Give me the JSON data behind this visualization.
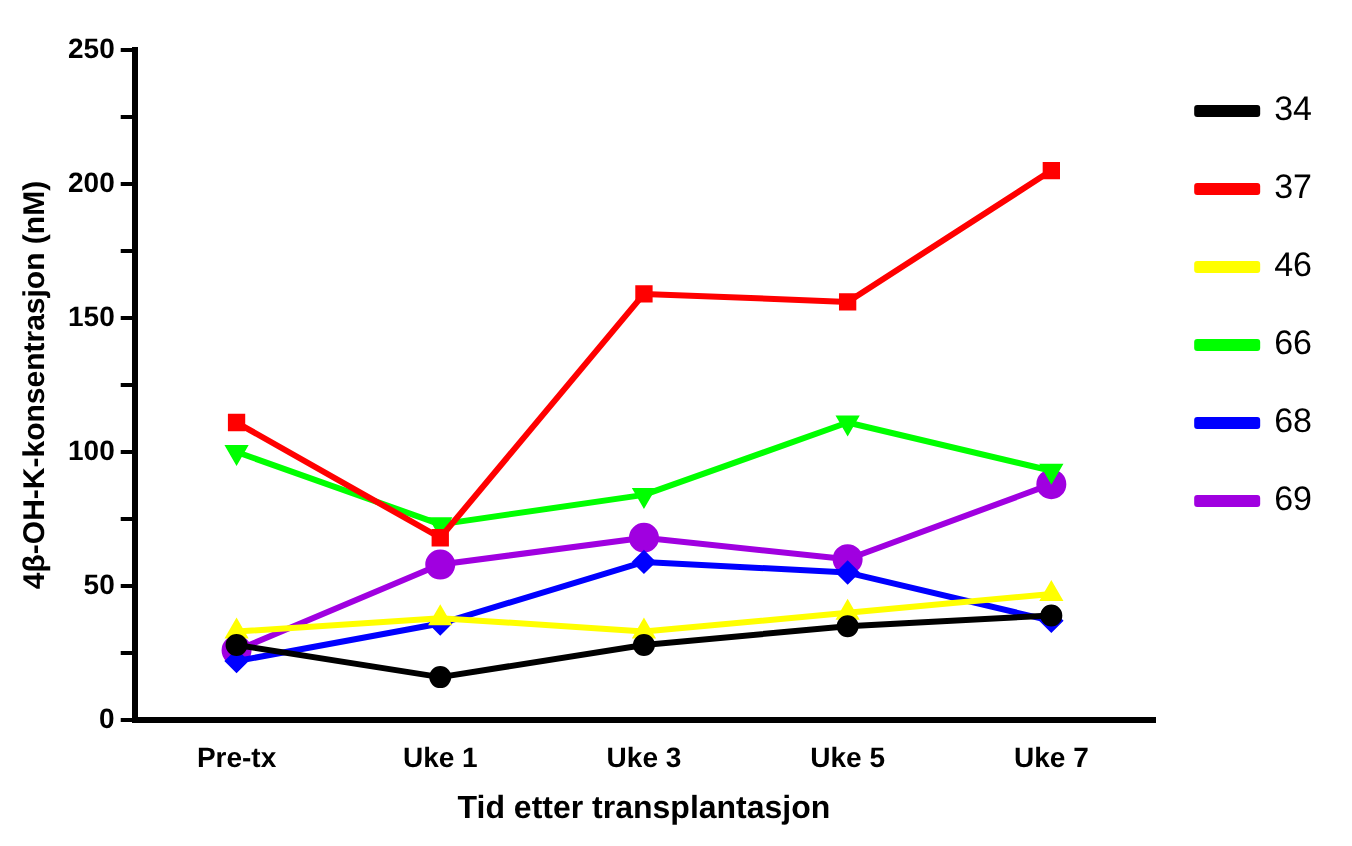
{
  "chart_data": {
    "type": "line",
    "xlabel": "Tid etter transplantasjon",
    "ylabel": "4β-OH-K-konsentrasjon (nM)",
    "categories": [
      "Pre-tx",
      "Uke 1",
      "Uke 3",
      "Uke 5",
      "Uke 7"
    ],
    "series": [
      {
        "name": "34",
        "color": "#000000",
        "marker": "circle",
        "values": [
          28,
          16,
          28,
          35,
          39
        ]
      },
      {
        "name": "37",
        "color": "#ff0000",
        "marker": "square",
        "values": [
          111,
          68,
          159,
          156,
          205
        ]
      },
      {
        "name": "46",
        "color": "#ffff00",
        "marker": "triangle",
        "values": [
          33,
          38,
          33,
          40,
          47
        ]
      },
      {
        "name": "66",
        "color": "#00ff00",
        "marker": "triangle",
        "values": [
          100,
          73,
          84,
          111,
          93
        ]
      },
      {
        "name": "68",
        "color": "#0000ff",
        "marker": "diamond",
        "values": [
          22,
          36,
          59,
          55,
          37
        ]
      },
      {
        "name": "69",
        "color": "#a000e0",
        "marker": "circle",
        "values": [
          26,
          58,
          68,
          60,
          88
        ]
      }
    ],
    "ylim": [
      0,
      250
    ],
    "yticks": [
      0,
      {
        "value": 25,
        "label": null
      },
      50,
      {
        "value": 75,
        "label": null
      },
      100,
      {
        "value": 125,
        "label": null
      },
      150,
      {
        "value": 175,
        "label": null
      },
      200,
      {
        "value": 225,
        "label": null
      },
      250
    ],
    "grid": false,
    "legend": "right",
    "line_style": "solid"
  }
}
